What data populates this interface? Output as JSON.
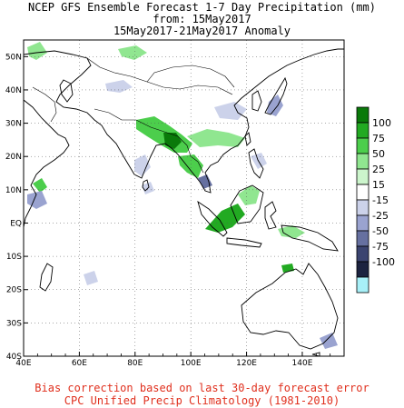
{
  "title": {
    "line1": "NCEP GFS Ensemble Forecast 1-7 Day Precipitation (mm)",
    "line2": "from: 15May2017",
    "line3": "15May2017-21May2017 Anomaly"
  },
  "footer": {
    "line1": "Bias correction based on last 30-day forecast error",
    "line2": "CPC Unified Precip Climatology (1981-2010)"
  },
  "map": {
    "lon_range": [
      40,
      155
    ],
    "lat_range": [
      -40,
      55
    ],
    "x_ticks": [
      {
        "value": 40,
        "label": "40E"
      },
      {
        "value": 60,
        "label": "60E"
      },
      {
        "value": 80,
        "label": "80E"
      },
      {
        "value": 100,
        "label": "100E"
      },
      {
        "value": 120,
        "label": "120E"
      },
      {
        "value": 140,
        "label": "140E"
      }
    ],
    "y_ticks": [
      {
        "value": 50,
        "label": "50N"
      },
      {
        "value": 40,
        "label": "40N"
      },
      {
        "value": 30,
        "label": "30N"
      },
      {
        "value": 20,
        "label": "20N"
      },
      {
        "value": 10,
        "label": "10N"
      },
      {
        "value": 0,
        "label": "EQ"
      },
      {
        "value": -10,
        "label": "10S"
      },
      {
        "value": -20,
        "label": "20S"
      },
      {
        "value": -30,
        "label": "30S"
      },
      {
        "value": -40,
        "label": "40S"
      }
    ]
  },
  "colorbar": {
    "labels": [
      "100",
      "75",
      "50",
      "25",
      "15",
      "-15",
      "-25",
      "-50",
      "-75",
      "-100"
    ],
    "colors": [
      "#0a7a0a",
      "#22aa22",
      "#4cce4c",
      "#90e690",
      "#ccf5cc",
      "#ffffff",
      "#ccd2ea",
      "#9aa3d0",
      "#6670a0",
      "#3b4470",
      "#1c2340",
      "#a8f0f8"
    ]
  }
}
